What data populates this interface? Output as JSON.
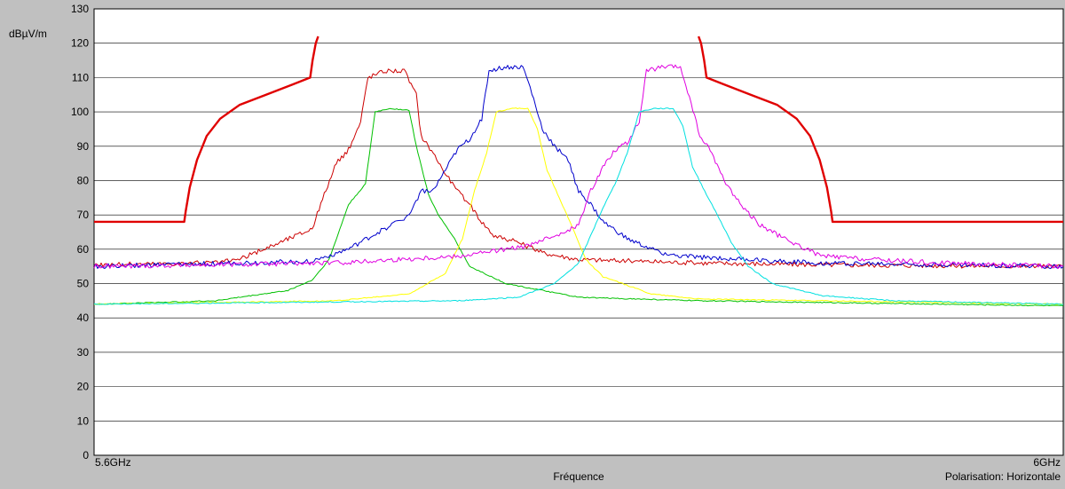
{
  "chart_data": {
    "type": "line",
    "ylabel": "dBµV/m",
    "xlabel": "Fréquence",
    "x_range_ghz": [
      5.6,
      6.0
    ],
    "x_tick_labels": [
      "5.6GHz",
      "6GHz"
    ],
    "ylim": [
      0,
      130
    ],
    "y_ticks": [
      0,
      10,
      20,
      30,
      40,
      50,
      60,
      70,
      80,
      90,
      100,
      110,
      120,
      130
    ],
    "polarization_label": "Polarisation: Horizontale",
    "grid": true,
    "series": [
      {
        "id": "mask-left",
        "color": "#e00000",
        "points": [
          [
            5.6,
            68
          ],
          [
            5.6372,
            68
          ],
          [
            5.6378,
            71
          ],
          [
            5.6395,
            78
          ],
          [
            5.6425,
            86
          ],
          [
            5.6465,
            93
          ],
          [
            5.652,
            98
          ],
          [
            5.66,
            102
          ],
          [
            5.671,
            105
          ],
          [
            5.682,
            108
          ],
          [
            5.6892,
            110
          ],
          [
            5.6902,
            115
          ],
          [
            5.6915,
            120
          ],
          [
            5.6925,
            122
          ]
        ]
      },
      {
        "id": "mask-right",
        "color": "#e00000",
        "points": [
          [
            5.8495,
            122
          ],
          [
            5.8505,
            120
          ],
          [
            5.8518,
            115
          ],
          [
            5.8528,
            110
          ],
          [
            5.86,
            108
          ],
          [
            5.871,
            105
          ],
          [
            5.882,
            102
          ],
          [
            5.89,
            98
          ],
          [
            5.8955,
            93
          ],
          [
            5.8995,
            86
          ],
          [
            5.9025,
            78
          ],
          [
            5.9042,
            71
          ],
          [
            5.9048,
            68
          ],
          [
            6.0,
            68
          ]
        ]
      },
      {
        "id": "red-trace",
        "color": "#cc0000",
        "points": [
          [
            5.6,
            55.5
          ],
          [
            5.65,
            56
          ],
          [
            5.66,
            57
          ],
          [
            5.67,
            60
          ],
          [
            5.68,
            63
          ],
          [
            5.69,
            66
          ],
          [
            5.695,
            76
          ],
          [
            5.7,
            85
          ],
          [
            5.705,
            89
          ],
          [
            5.71,
            97
          ],
          [
            5.713,
            110
          ],
          [
            5.72,
            112
          ],
          [
            5.728,
            112
          ],
          [
            5.733,
            105
          ],
          [
            5.735,
            93
          ],
          [
            5.74,
            88
          ],
          [
            5.745,
            82
          ],
          [
            5.75,
            77
          ],
          [
            5.755,
            73
          ],
          [
            5.76,
            68
          ],
          [
            5.765,
            64
          ],
          [
            5.775,
            62
          ],
          [
            5.785,
            59
          ],
          [
            5.8,
            57
          ],
          [
            5.85,
            56
          ],
          [
            5.9,
            55.5
          ],
          [
            6.0,
            55
          ]
        ]
      },
      {
        "id": "green-trace",
        "color": "#00c000",
        "points": [
          [
            5.6,
            44
          ],
          [
            5.65,
            45
          ],
          [
            5.68,
            48
          ],
          [
            5.69,
            51
          ],
          [
            5.697,
            57
          ],
          [
            5.7,
            63
          ],
          [
            5.705,
            73
          ],
          [
            5.712,
            79
          ],
          [
            5.716,
            100
          ],
          [
            5.722,
            101
          ],
          [
            5.73,
            100.5
          ],
          [
            5.733,
            90
          ],
          [
            5.738,
            76
          ],
          [
            5.742,
            70
          ],
          [
            5.748,
            64
          ],
          [
            5.755,
            55
          ],
          [
            5.77,
            50
          ],
          [
            5.8,
            46
          ],
          [
            5.85,
            45
          ],
          [
            6.0,
            43.5
          ]
        ]
      },
      {
        "id": "blue-trace",
        "color": "#0000cc",
        "points": [
          [
            5.6,
            55
          ],
          [
            5.69,
            56.5
          ],
          [
            5.705,
            60
          ],
          [
            5.72,
            66
          ],
          [
            5.73,
            70
          ],
          [
            5.735,
            77
          ],
          [
            5.74,
            77
          ],
          [
            5.745,
            83
          ],
          [
            5.75,
            89
          ],
          [
            5.755,
            92
          ],
          [
            5.76,
            98
          ],
          [
            5.763,
            112
          ],
          [
            5.77,
            113
          ],
          [
            5.777,
            113
          ],
          [
            5.78,
            107
          ],
          [
            5.785,
            95
          ],
          [
            5.79,
            90
          ],
          [
            5.795,
            87
          ],
          [
            5.8,
            77
          ],
          [
            5.805,
            73
          ],
          [
            5.81,
            68
          ],
          [
            5.82,
            63
          ],
          [
            5.83,
            60
          ],
          [
            5.84,
            58
          ],
          [
            5.9,
            56
          ],
          [
            6.0,
            55
          ]
        ]
      },
      {
        "id": "yellow-trace",
        "color": "#ffff00",
        "points": [
          [
            5.6,
            44
          ],
          [
            5.7,
            45
          ],
          [
            5.73,
            47
          ],
          [
            5.745,
            53
          ],
          [
            5.752,
            63
          ],
          [
            5.757,
            77
          ],
          [
            5.762,
            88
          ],
          [
            5.766,
            100
          ],
          [
            5.772,
            101
          ],
          [
            5.779,
            101
          ],
          [
            5.783,
            95
          ],
          [
            5.787,
            83
          ],
          [
            5.792,
            75
          ],
          [
            5.797,
            67
          ],
          [
            5.803,
            57
          ],
          [
            5.81,
            52
          ],
          [
            5.83,
            47
          ],
          [
            5.85,
            45.5
          ],
          [
            6.0,
            44
          ]
        ]
      },
      {
        "id": "magenta-trace",
        "color": "#e000e0",
        "points": [
          [
            5.6,
            55
          ],
          [
            5.7,
            56
          ],
          [
            5.75,
            58
          ],
          [
            5.78,
            61
          ],
          [
            5.8,
            67
          ],
          [
            5.805,
            77
          ],
          [
            5.81,
            84
          ],
          [
            5.815,
            89
          ],
          [
            5.82,
            91
          ],
          [
            5.825,
            97
          ],
          [
            5.828,
            112
          ],
          [
            5.835,
            113
          ],
          [
            5.842,
            113
          ],
          [
            5.845,
            106
          ],
          [
            5.85,
            93
          ],
          [
            5.855,
            88
          ],
          [
            5.86,
            80
          ],
          [
            5.868,
            72
          ],
          [
            5.875,
            67
          ],
          [
            5.885,
            63
          ],
          [
            5.9,
            58
          ],
          [
            5.92,
            57
          ],
          [
            5.95,
            56
          ],
          [
            6.0,
            55
          ]
        ]
      },
      {
        "id": "cyan-trace",
        "color": "#00e0e0",
        "points": [
          [
            5.6,
            44
          ],
          [
            5.75,
            45
          ],
          [
            5.775,
            46
          ],
          [
            5.79,
            50
          ],
          [
            5.8,
            56
          ],
          [
            5.805,
            64
          ],
          [
            5.81,
            72
          ],
          [
            5.815,
            79
          ],
          [
            5.82,
            88
          ],
          [
            5.825,
            100
          ],
          [
            5.831,
            101
          ],
          [
            5.839,
            101
          ],
          [
            5.843,
            96
          ],
          [
            5.847,
            84
          ],
          [
            5.852,
            77
          ],
          [
            5.858,
            69
          ],
          [
            5.863,
            62
          ],
          [
            5.87,
            55
          ],
          [
            5.88,
            50
          ],
          [
            5.9,
            46.5
          ],
          [
            5.93,
            45
          ],
          [
            6.0,
            44
          ]
        ]
      }
    ]
  }
}
